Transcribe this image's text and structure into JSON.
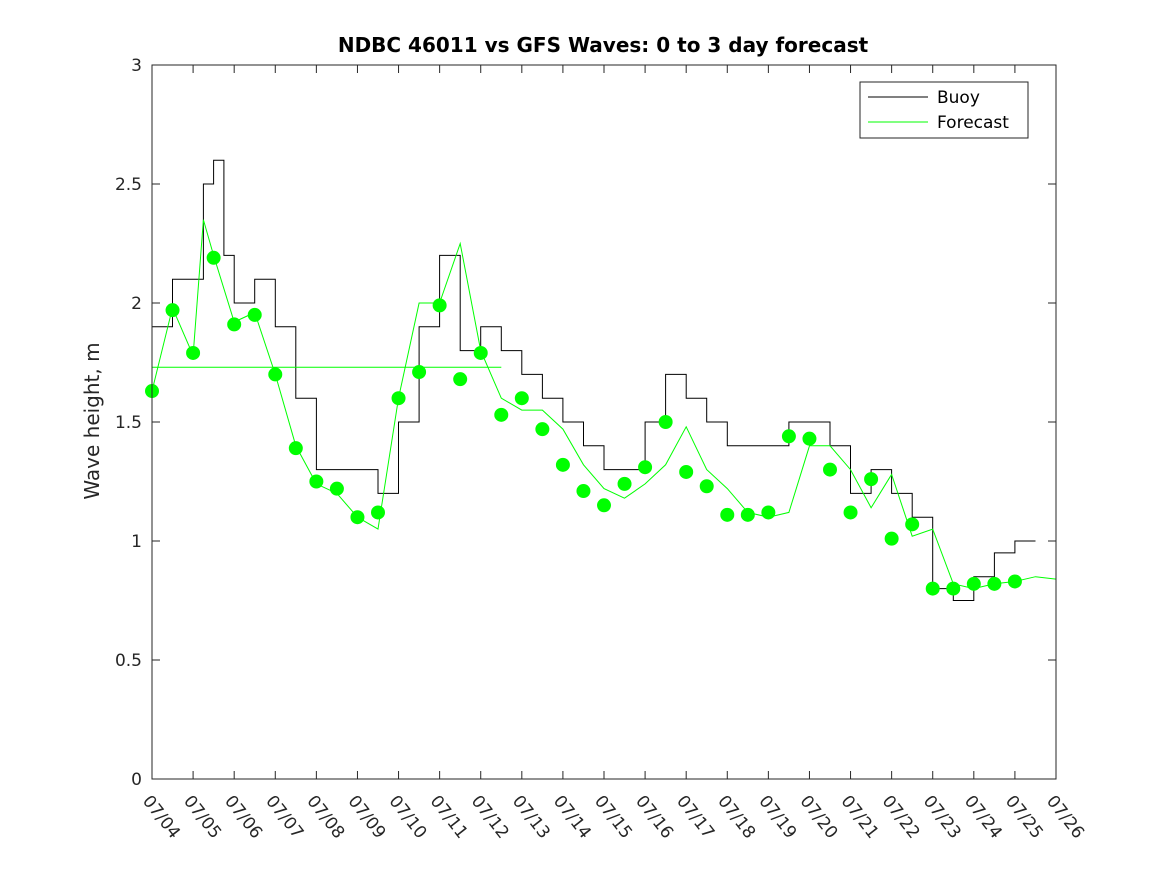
{
  "chart_data": {
    "type": "line",
    "title": "NDBC 46011 vs GFS Waves: 0 to 3 day forecast",
    "xlabel": "",
    "ylabel": "Wave height, m",
    "ylim": [
      0,
      3
    ],
    "yticks": [
      "0",
      "0.5",
      "1",
      "1.5",
      "2",
      "2.5",
      "3"
    ],
    "x_tick_labels": [
      "07/04",
      "07/05",
      "07/06",
      "07/07",
      "07/08",
      "07/09",
      "07/10",
      "07/11",
      "07/12",
      "07/13",
      "07/14",
      "07/15",
      "07/16",
      "07/17",
      "07/18",
      "07/19",
      "07/20",
      "07/21",
      "07/22",
      "07/23",
      "07/24",
      "07/25",
      "07/26"
    ],
    "grid": false,
    "legend": {
      "placement": "top-right",
      "entries": [
        "Buoy",
        "Forecast"
      ]
    },
    "colors": {
      "buoy": "#000000",
      "forecast": "#00ff00"
    },
    "series": [
      {
        "name": "Buoy",
        "x": [
          "07/04 00:00",
          "07/04 12:00",
          "07/05 00:00",
          "07/05 06:00",
          "07/05 12:00",
          "07/05 18:00",
          "07/06 00:00",
          "07/06 12:00",
          "07/07 00:00",
          "07/07 12:00",
          "07/08 00:00",
          "07/08 12:00",
          "07/09 00:00",
          "07/09 12:00",
          "07/10 00:00",
          "07/10 12:00",
          "07/11 00:00",
          "07/11 12:00",
          "07/12 00:00",
          "07/12 12:00",
          "07/13 00:00",
          "07/13 12:00",
          "07/14 00:00",
          "07/14 12:00",
          "07/15 00:00",
          "07/15 12:00",
          "07/16 00:00",
          "07/16 12:00",
          "07/17 00:00",
          "07/17 12:00",
          "07/18 00:00",
          "07/18 12:00",
          "07/19 00:00",
          "07/19 12:00",
          "07/20 00:00",
          "07/20 12:00",
          "07/21 00:00",
          "07/21 12:00",
          "07/22 00:00",
          "07/22 12:00",
          "07/23 00:00",
          "07/23 12:00",
          "07/24 00:00",
          "07/24 12:00",
          "07/25 00:00",
          "07/25 12:00"
        ],
        "values": [
          1.9,
          2.1,
          2.1,
          2.5,
          2.6,
          2.2,
          2.0,
          2.1,
          1.9,
          1.6,
          1.3,
          1.3,
          1.3,
          1.2,
          1.5,
          1.9,
          2.2,
          1.8,
          1.9,
          1.8,
          1.7,
          1.6,
          1.5,
          1.4,
          1.3,
          1.3,
          1.5,
          1.7,
          1.6,
          1.5,
          1.4,
          1.4,
          1.4,
          1.5,
          1.5,
          1.4,
          1.2,
          1.3,
          1.2,
          1.1,
          0.8,
          0.75,
          0.85,
          0.95,
          1.0,
          1.0
        ]
      },
      {
        "name": "Forecast",
        "x": [
          "07/04 00:00",
          "07/04 12:00",
          "07/05 00:00",
          "07/05 06:00",
          "07/05 12:00",
          "07/06 00:00",
          "07/06 12:00",
          "07/07 00:00",
          "07/07 12:00",
          "07/08 00:00",
          "07/08 12:00",
          "07/09 00:00",
          "07/09 12:00",
          "07/10 00:00",
          "07/10 12:00",
          "07/11 00:00",
          "07/11 12:00",
          "07/12 00:00",
          "07/12 12:00",
          "07/13 00:00",
          "07/13 12:00",
          "07/14 00:00",
          "07/14 12:00",
          "07/15 00:00",
          "07/15 12:00",
          "07/16 00:00",
          "07/16 12:00",
          "07/17 00:00",
          "07/17 12:00",
          "07/18 00:00",
          "07/18 12:00",
          "07/19 00:00",
          "07/19 12:00",
          "07/20 00:00",
          "07/20 12:00",
          "07/21 00:00",
          "07/21 12:00",
          "07/22 00:00",
          "07/22 12:00",
          "07/23 00:00",
          "07/23 12:00",
          "07/24 00:00",
          "07/24 12:00",
          "07/25 00:00",
          "07/25 12:00",
          "07/26 00:00"
        ],
        "values": [
          1.63,
          1.98,
          1.78,
          2.35,
          2.2,
          1.92,
          1.96,
          1.7,
          1.4,
          1.24,
          1.2,
          1.1,
          1.05,
          1.6,
          2.0,
          2.0,
          2.25,
          1.8,
          1.6,
          1.55,
          1.55,
          1.47,
          1.32,
          1.22,
          1.18,
          1.24,
          1.32,
          1.48,
          1.3,
          1.22,
          1.12,
          1.1,
          1.12,
          1.4,
          1.4,
          1.3,
          1.14,
          1.28,
          1.02,
          1.05,
          0.82,
          0.8,
          0.82,
          0.83,
          0.85,
          0.84
        ]
      },
      {
        "name": "",
        "x": [
          "07/04 00:00",
          "07/12 12:00"
        ],
        "values": [
          1.73,
          1.73
        ]
      }
    ],
    "markers": {
      "x": [
        "07/04 00:00",
        "07/04 12:00",
        "07/05 00:00",
        "07/05 12:00",
        "07/06 00:00",
        "07/06 12:00",
        "07/07 00:00",
        "07/07 12:00",
        "07/08 00:00",
        "07/08 12:00",
        "07/09 00:00",
        "07/09 12:00",
        "07/10 00:00",
        "07/10 12:00",
        "07/11 00:00",
        "07/11 12:00",
        "07/12 00:00",
        "07/12 12:00",
        "07/13 00:00",
        "07/13 12:00",
        "07/14 00:00",
        "07/14 12:00",
        "07/15 00:00",
        "07/15 12:00",
        "07/16 00:00",
        "07/16 12:00",
        "07/17 00:00",
        "07/17 12:00",
        "07/18 00:00",
        "07/18 12:00",
        "07/19 00:00",
        "07/19 12:00",
        "07/20 00:00",
        "07/20 12:00",
        "07/21 00:00",
        "07/21 12:00",
        "07/22 00:00",
        "07/22 12:00",
        "07/23 00:00",
        "07/23 12:00",
        "07/24 00:00",
        "07/24 12:00",
        "07/25 00:00"
      ],
      "values": [
        1.63,
        1.97,
        1.79,
        2.19,
        1.91,
        1.95,
        1.7,
        1.39,
        1.25,
        1.22,
        1.1,
        1.12,
        1.6,
        1.71,
        1.99,
        1.68,
        1.79,
        1.53,
        1.6,
        1.47,
        1.32,
        1.21,
        1.15,
        1.24,
        1.31,
        1.5,
        1.29,
        1.23,
        1.11,
        1.11,
        1.12,
        1.44,
        1.43,
        1.3,
        1.12,
        1.26,
        1.01,
        1.07,
        0.8,
        0.8,
        0.82,
        0.82,
        0.83
      ]
    }
  }
}
